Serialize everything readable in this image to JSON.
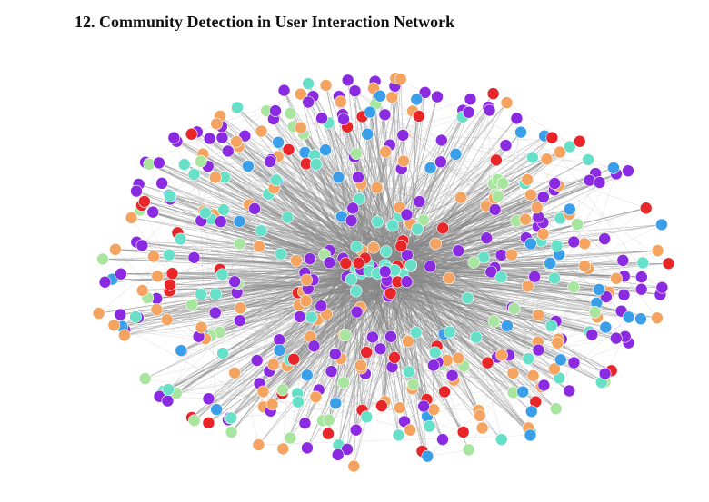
{
  "header": {
    "title": "12. Community Detection in User Interaction Network"
  }
}
